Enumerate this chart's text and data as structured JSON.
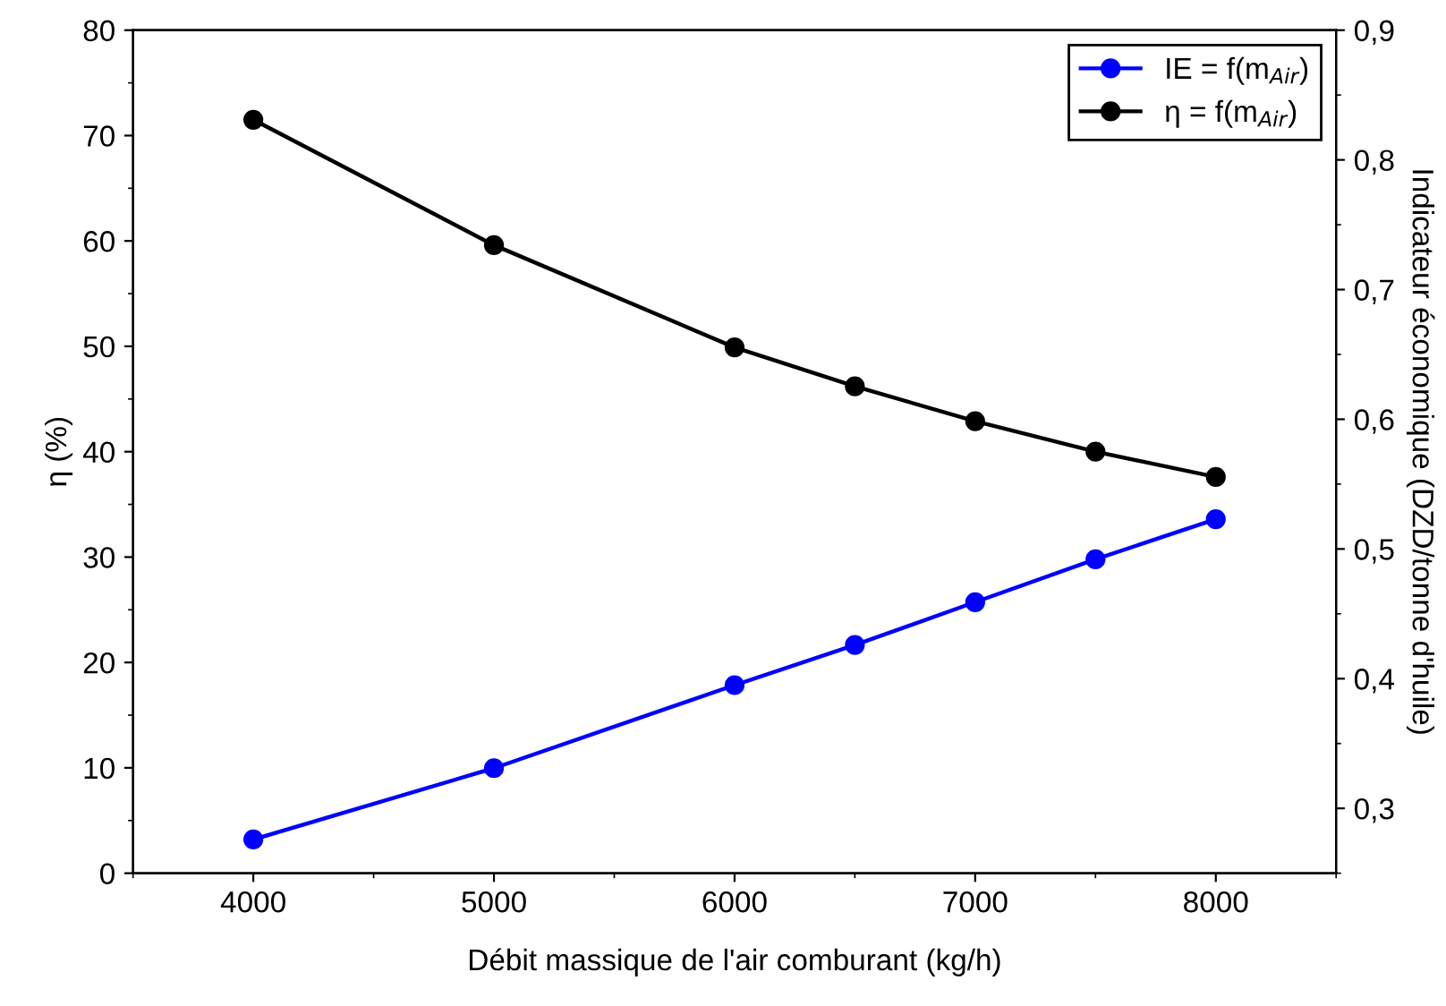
{
  "chart_data": {
    "type": "line",
    "xlabel": "Débit massique de l'air comburant (kg/h)",
    "ylabel": "η (%)",
    "y2label": "Indicateur économique (DZD/tonne d'huile)",
    "x": [
      4000,
      5000,
      6000,
      6500,
      7000,
      7500,
      8000
    ],
    "series": [
      {
        "name": "IE = f(m$_{Air}$)",
        "color": "#0000ff",
        "axis": "y2",
        "marker": "circle",
        "values": [
          0.276,
          0.331,
          0.395,
          0.426,
          0.459,
          0.492,
          0.523
        ]
      },
      {
        "name": "η = f(m$_{Air}$)",
        "color": "#000000",
        "marker": "circle",
        "values": [
          71.5,
          59.6,
          49.9,
          46.2,
          42.9,
          40.0,
          37.6
        ]
      }
    ],
    "xlim": [
      3500,
      8500
    ],
    "xticks": [
      4000,
      5000,
      6000,
      7000,
      8000
    ],
    "ylim": [
      0,
      80
    ],
    "yticks": [
      0,
      10,
      20,
      30,
      40,
      50,
      60,
      70,
      80
    ],
    "y2lim": [
      0.25,
      0.9
    ],
    "y2ticks": [
      {
        "value": 0.3,
        "label": "0,3"
      },
      {
        "value": 0.4,
        "label": "0,4"
      },
      {
        "value": 0.5,
        "label": "0,5"
      },
      {
        "value": 0.6,
        "label": "0,6"
      },
      {
        "value": 0.7,
        "label": "0,7"
      },
      {
        "value": 0.8,
        "label": "0,8"
      },
      {
        "value": 0.9,
        "label": "0,9"
      }
    ],
    "legend": "top right",
    "grid": false
  }
}
